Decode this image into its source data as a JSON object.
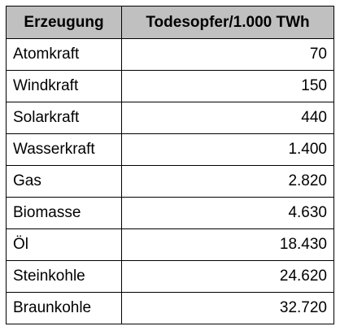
{
  "chart_data": {
    "type": "table",
    "columns": [
      "Erzeugung",
      "Todesopfer/1.000 TWh"
    ],
    "rows": [
      {
        "source": "Atomkraft",
        "value_label": "70",
        "value": 70
      },
      {
        "source": "Windkraft",
        "value_label": "150",
        "value": 150
      },
      {
        "source": "Solarkraft",
        "value_label": "440",
        "value": 440
      },
      {
        "source": "Wasserkraft",
        "value_label": "1.400",
        "value": 1400
      },
      {
        "source": "Gas",
        "value_label": "2.820",
        "value": 2820
      },
      {
        "source": "Biomasse",
        "value_label": "4.630",
        "value": 4630
      },
      {
        "source": "Öl",
        "value_label": "18.430",
        "value": 18430
      },
      {
        "source": "Steinkohle",
        "value_label": "24.620",
        "value": 24620
      },
      {
        "source": "Braunkohle",
        "value_label": "32.720",
        "value": 32720
      }
    ]
  },
  "colors": {
    "header_background": "#c0c0c0",
    "border": "#000000",
    "text": "#000000"
  }
}
